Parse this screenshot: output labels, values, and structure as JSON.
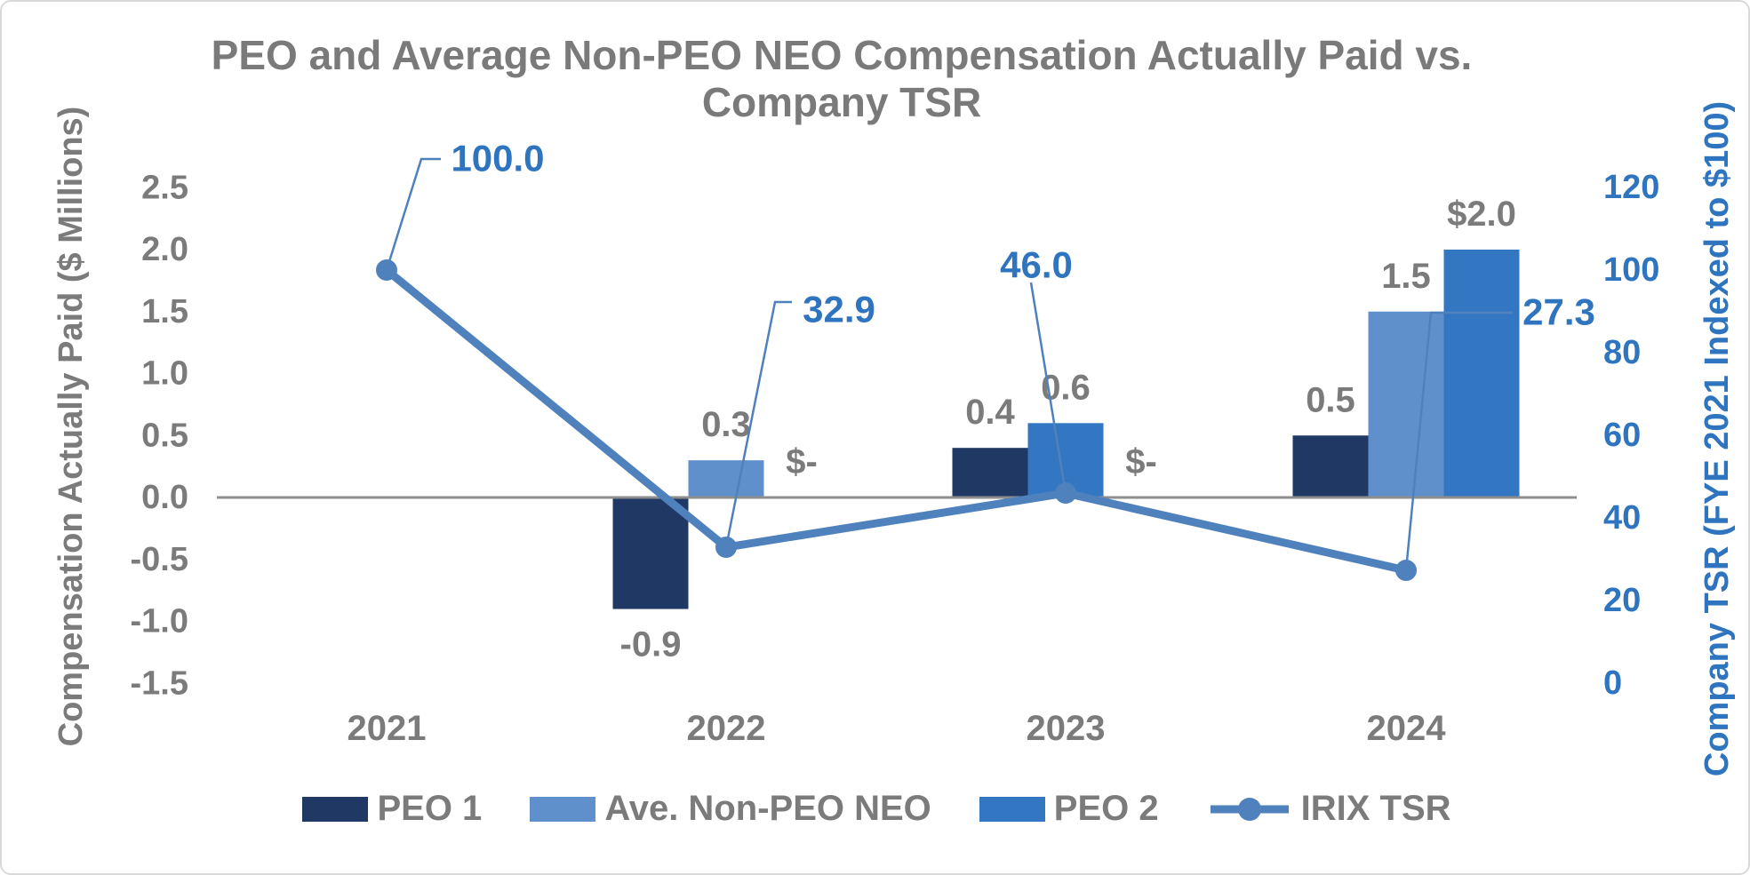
{
  "title": {
    "line1": "PEO and Average Non-PEO NEO Compensation Actually Paid vs.",
    "line2": "Company TSR"
  },
  "axes": {
    "left": {
      "title": "Compensation Actually Paid ($ Millions)",
      "ticks": [
        "2.5",
        "2.0",
        "1.5",
        "1.0",
        "0.5",
        "0.0",
        "-0.5",
        "-1.0",
        "-1.5"
      ]
    },
    "right": {
      "title": "Company TSR (FYE 2021 Indexed to $100)",
      "ticks": [
        "120",
        "100",
        "80",
        "60",
        "40",
        "20",
        "0"
      ]
    },
    "x": {
      "categories": [
        "2021",
        "2022",
        "2023",
        "2024"
      ]
    }
  },
  "legend": {
    "items": [
      {
        "label": "PEO 1",
        "swatch": "peo1",
        "kind": "box"
      },
      {
        "label": "Ave. Non-PEO NEO",
        "swatch": "ave_neo",
        "kind": "box"
      },
      {
        "label": "PEO 2",
        "swatch": "peo2",
        "kind": "box"
      },
      {
        "label": "IRIX TSR",
        "swatch": "tsr_line",
        "kind": "line-marker"
      }
    ]
  },
  "colors": {
    "peo1": "#1f3864",
    "ave_neo": "#6090cc",
    "peo2": "#3377c2",
    "tsr_line": "#4f81bd",
    "blue_text": "#2e74be",
    "gray_text": "#7b7b7b",
    "axis_line": "#8e8e8e"
  },
  "chart_data": {
    "type": "combo bar+line",
    "title": "PEO and Average Non-PEO NEO Compensation Actually Paid vs. Company TSR",
    "categories": [
      "2021",
      "2022",
      "2023",
      "2024"
    ],
    "left_axis_label": "Compensation Actually Paid ($ Millions)",
    "right_axis_label": "Company TSR (FYE 2021 Indexed to $100)",
    "left_ylim": [
      -1.5,
      2.5
    ],
    "right_ylim": [
      0,
      120
    ],
    "grid": false,
    "legend_position": "bottom",
    "bar_series": [
      {
        "name": "PEO 1",
        "color_key": "peo1",
        "values": [
          null,
          -0.9,
          0.4,
          0.5
        ],
        "data_labels": [
          "",
          "-0.9",
          "0.4",
          "0.5"
        ]
      },
      {
        "name": "Ave. Non-PEO NEO",
        "color_key": "ave_neo",
        "values": [
          null,
          0.3,
          0.6,
          1.5
        ],
        "data_labels": [
          "",
          "0.3",
          "0.6",
          "1.5"
        ]
      },
      {
        "name": "PEO 2",
        "color_key": "peo2",
        "values": [
          null,
          0,
          0,
          2.0
        ],
        "data_labels": [
          "",
          "$-",
          "$-",
          "$2.0"
        ]
      }
    ],
    "line_series": {
      "name": "IRIX TSR",
      "axis": "right",
      "color_key": "tsr_line",
      "values": [
        100.0,
        32.9,
        46.0,
        27.3
      ],
      "data_labels": [
        "100.0",
        "32.9",
        "46.0",
        "27.3"
      ]
    },
    "bar_color_overrides": [
      {
        "category": "2023",
        "series": "Ave. Non-PEO NEO",
        "color_key": "peo2"
      }
    ]
  }
}
